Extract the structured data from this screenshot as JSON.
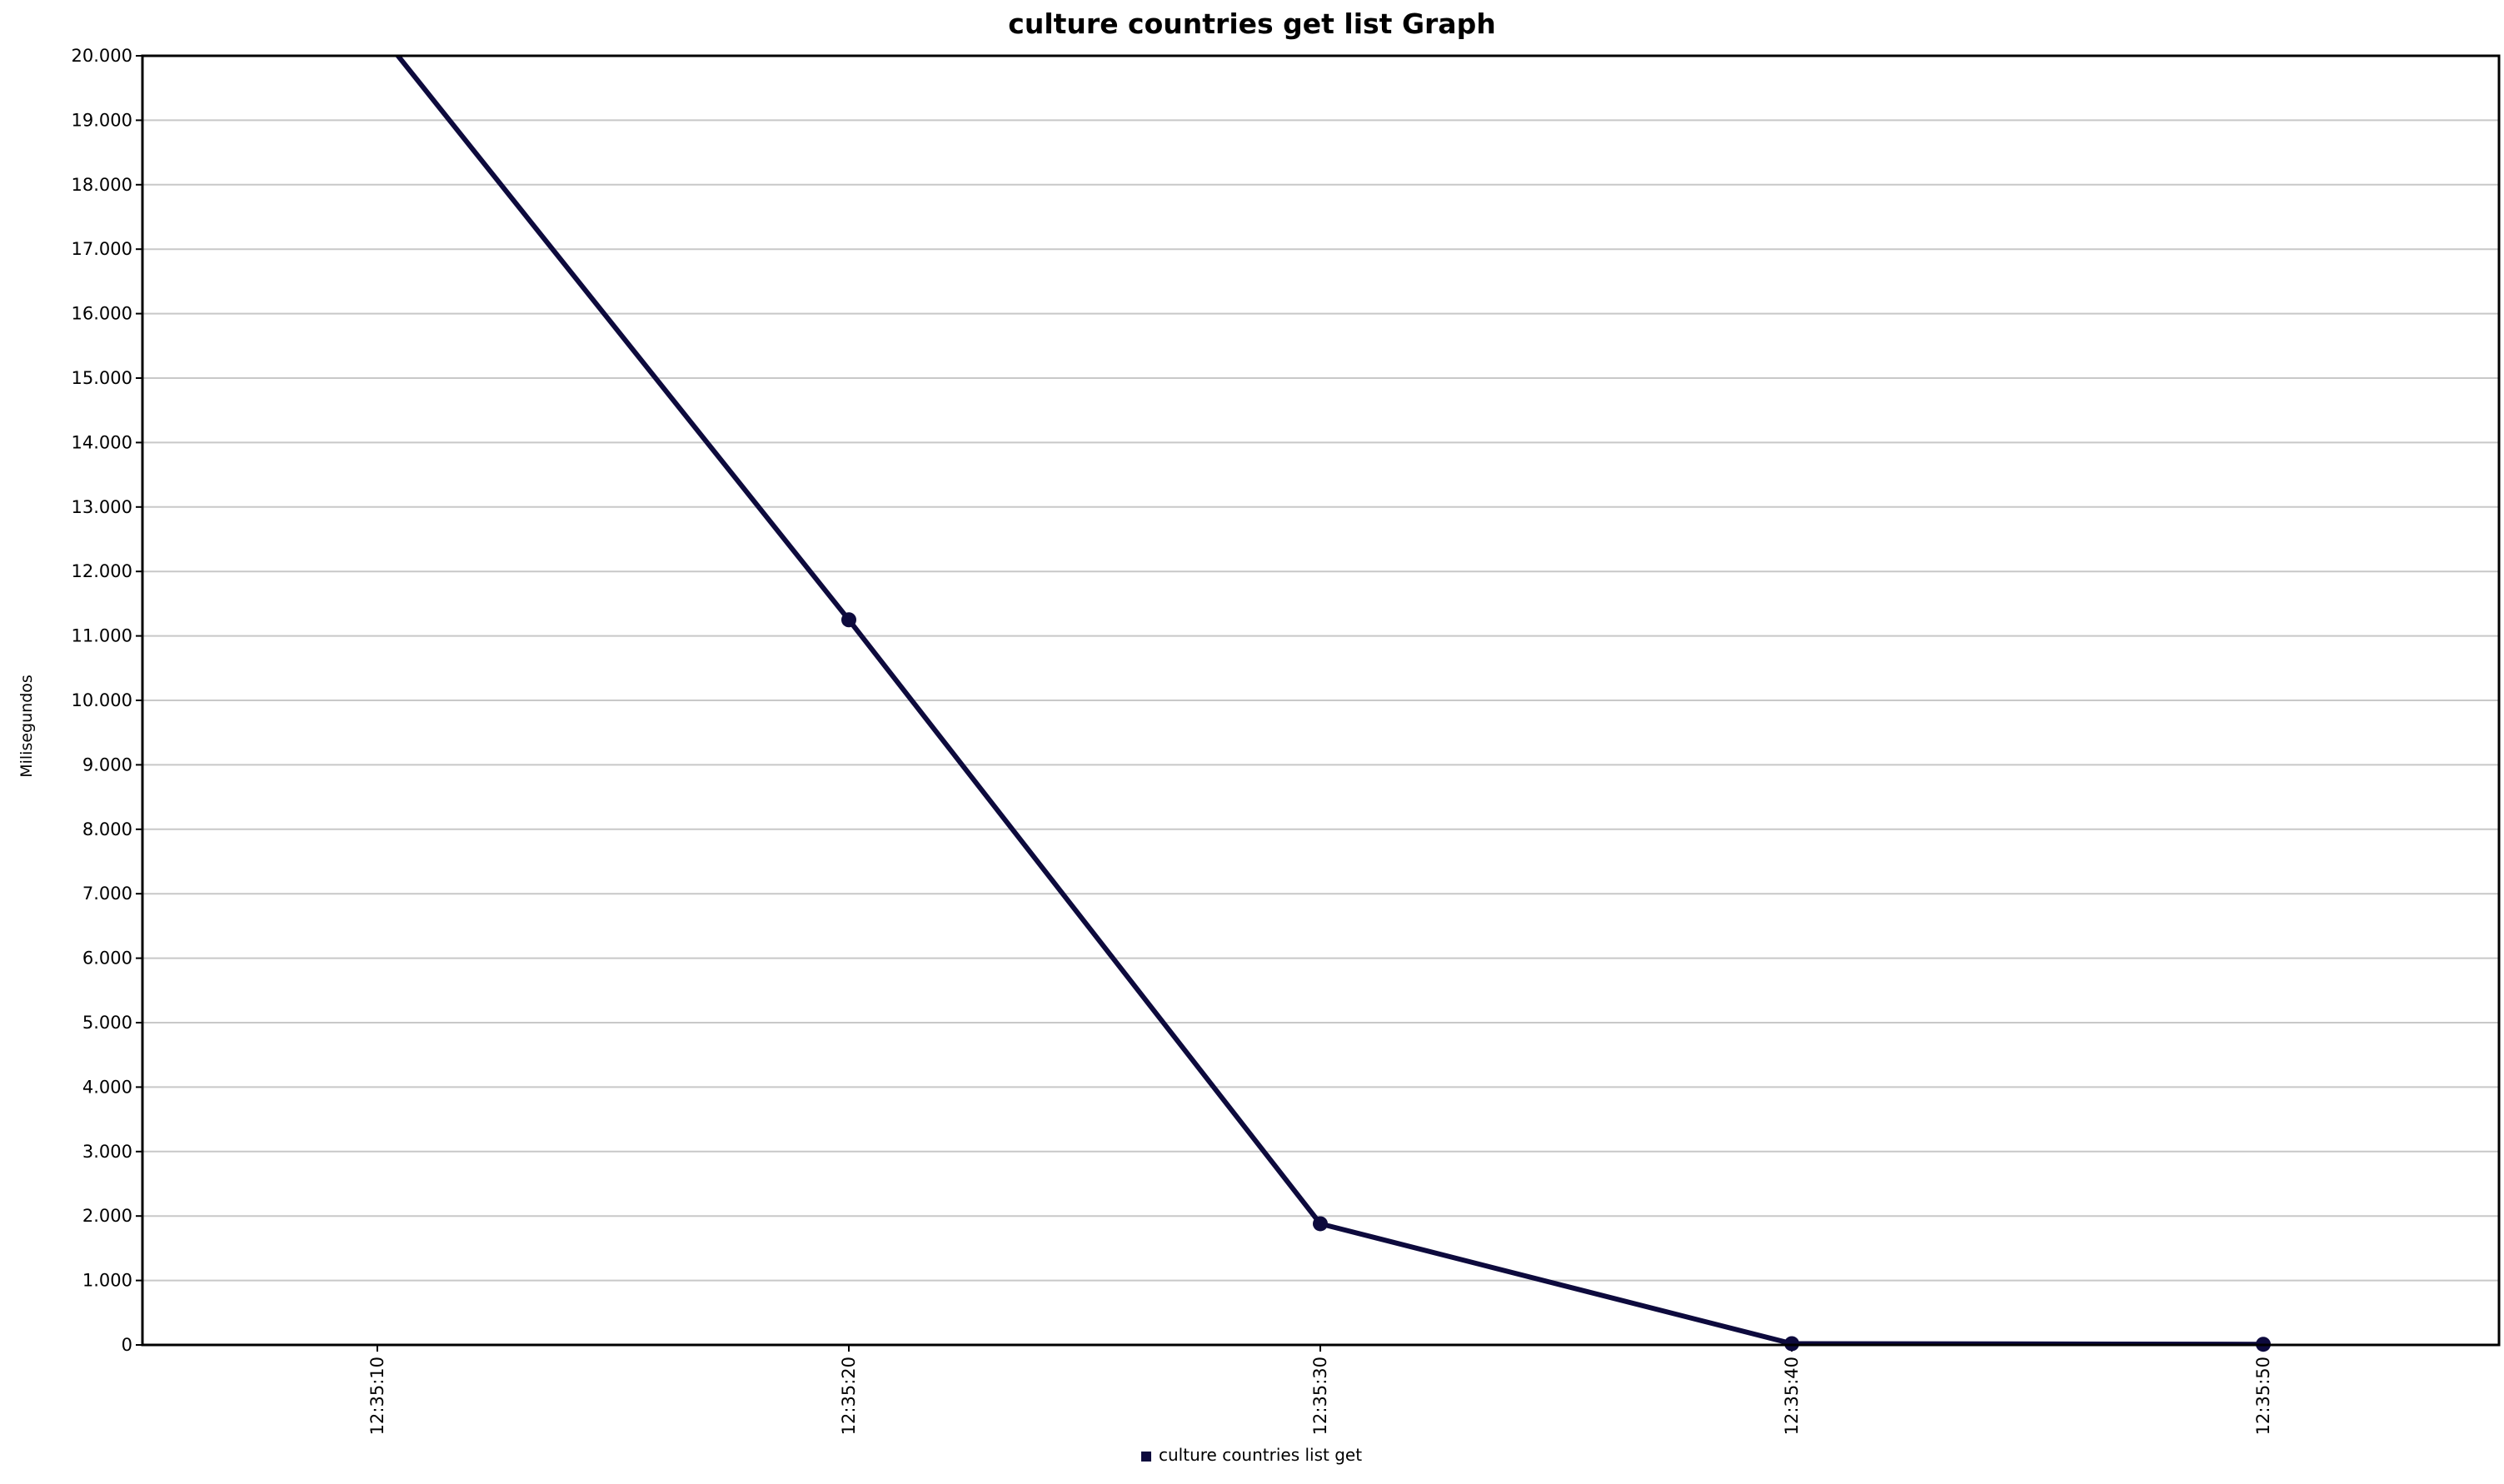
{
  "chart_data": {
    "type": "line",
    "title": "culture countries get list Graph",
    "xlabel": "",
    "ylabel": "Milisegundos",
    "x": [
      "12:35:10",
      "12:35:20",
      "12:35:30",
      "12:35:40",
      "12:35:50"
    ],
    "ylim": [
      0,
      20000
    ],
    "y_ticks": [
      "0",
      "1.000",
      "2.000",
      "3.000",
      "4.000",
      "5.000",
      "6.000",
      "7.000",
      "8.000",
      "9.000",
      "10.000",
      "11.000",
      "12.000",
      "13.000",
      "14.000",
      "15.000",
      "16.000",
      "17.000",
      "18.000",
      "19.000",
      "20.000"
    ],
    "grid": "horizontal",
    "legend_position": "bottom-center",
    "series": [
      {
        "name": "culture countries list get",
        "color": "#0d0a3d",
        "values": [
          20400,
          11250,
          1880,
          20,
          10
        ]
      }
    ]
  }
}
